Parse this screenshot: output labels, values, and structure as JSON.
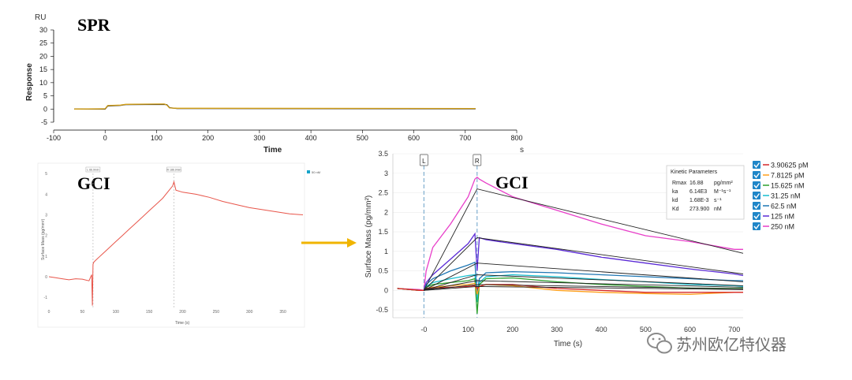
{
  "spr_chart": {
    "type": "line",
    "title": "SPR",
    "y_unit": "RU",
    "ylabel": "Response",
    "xlabel": "Time",
    "x_unit": "s",
    "xlim": [
      -100,
      800
    ],
    "ylim": [
      -5,
      30
    ],
    "xticks": [
      -100,
      0,
      100,
      200,
      300,
      400,
      500,
      600,
      700,
      800
    ],
    "yticks": [
      -5,
      0,
      5,
      10,
      15,
      20,
      25,
      30
    ],
    "series": [
      {
        "color": "#000000",
        "x": [
          -60,
          0,
          5,
          30,
          40,
          115,
          120,
          125,
          140,
          720
        ],
        "y": [
          0,
          0,
          1.2,
          1.4,
          1.7,
          1.8,
          1.6,
          0.5,
          0.2,
          0.1
        ]
      },
      {
        "color": "#d4a017",
        "x": [
          -60,
          0,
          5,
          30,
          40,
          115,
          120,
          125,
          140,
          720
        ],
        "y": [
          0,
          0.1,
          1.3,
          1.5,
          1.8,
          1.9,
          1.5,
          0.4,
          0.3,
          0.2
        ]
      }
    ]
  },
  "gci_left": {
    "type": "line",
    "title": "GCI",
    "ylabel": "Surface Mass (pg/mm²)",
    "xlabel": "Time (s)",
    "legend": "50 nM",
    "marker_labels": [
      "L 66.9min",
      "R 186.9min"
    ],
    "xlim": [
      0,
      380
    ],
    "ylim": [
      -1.3,
      5.2
    ],
    "xticks": [
      0,
      50,
      100,
      150,
      200,
      250,
      300,
      350
    ],
    "yticks": [
      -1,
      0,
      1,
      2,
      3,
      4,
      5
    ],
    "markers_x": [
      66,
      187
    ],
    "series": [
      {
        "color": "#e8554a",
        "x": [
          0,
          10,
          20,
          30,
          40,
          50,
          60,
          64,
          65,
          66,
          67,
          70,
          80,
          90,
          100,
          110,
          120,
          130,
          140,
          150,
          160,
          170,
          180,
          185,
          187,
          190,
          200,
          220,
          240,
          260,
          280,
          300,
          320,
          340,
          360,
          380
        ],
        "y": [
          0.0,
          -0.05,
          -0.1,
          -0.15,
          -0.1,
          -0.12,
          -0.2,
          0.1,
          -1.4,
          0.6,
          0.7,
          0.8,
          1.1,
          1.4,
          1.7,
          2.0,
          2.3,
          2.6,
          2.9,
          3.2,
          3.5,
          3.8,
          4.2,
          4.4,
          4.6,
          4.2,
          4.1,
          4.0,
          3.85,
          3.65,
          3.5,
          3.35,
          3.25,
          3.15,
          3.05,
          3.0
        ]
      }
    ]
  },
  "gci_right": {
    "type": "line",
    "title": "GCI",
    "ylabel": "Surface Mass (pg/mm²)",
    "xlabel": "Time (s)",
    "xlim": [
      -70,
      720
    ],
    "ylim": [
      -0.7,
      3.5
    ],
    "xticks": [
      0,
      100,
      200,
      300,
      400,
      500,
      600,
      700
    ],
    "xticklabels": [
      "-0",
      "100",
      "200",
      "300",
      "400",
      "500",
      "600",
      "700"
    ],
    "yticks": [
      -0.5,
      0,
      0.5,
      1,
      1.5,
      2,
      2.5,
      3,
      3.5
    ],
    "markers": [
      {
        "label": "L",
        "x": 0
      },
      {
        "label": "R",
        "x": 120
      }
    ],
    "kinetic_parameters": {
      "title": "Kinetic Parameters",
      "rows": [
        {
          "name": "Rmax",
          "value": "16.88",
          "unit": "pg/mm²"
        },
        {
          "name": "ka",
          "value": "6.14E3",
          "unit": "M⁻¹s⁻¹"
        },
        {
          "name": "kd",
          "value": "1.68E-3",
          "unit": "s⁻¹"
        },
        {
          "name": "Kd",
          "value": "273.900",
          "unit": "nM"
        }
      ]
    },
    "legend": [
      {
        "name": "3.90625 pM",
        "color": "#d62728"
      },
      {
        "name": "7.8125 pM",
        "color": "#ff9f1a"
      },
      {
        "name": "15.625 nM",
        "color": "#2ca02c"
      },
      {
        "name": "31.25 nM",
        "color": "#17becf"
      },
      {
        "name": "62.5 nM",
        "color": "#1f77b4"
      },
      {
        "name": "125 nM",
        "color": "#5b2bd6"
      },
      {
        "name": "250 nM",
        "color": "#e83ec9"
      }
    ],
    "series": [
      {
        "name": "250 nM",
        "color": "#e83ec9",
        "x": [
          -60,
          -10,
          0,
          5,
          20,
          60,
          100,
          115,
          120,
          125,
          140,
          200,
          300,
          400,
          500,
          600,
          700,
          720
        ],
        "y": [
          0.05,
          0.02,
          0.0,
          0.5,
          1.1,
          1.7,
          2.4,
          2.85,
          2.9,
          2.85,
          2.75,
          2.4,
          2.05,
          1.7,
          1.4,
          1.25,
          1.05,
          1.05
        ]
      },
      {
        "name": "125 nM",
        "color": "#5b2bd6",
        "x": [
          -60,
          -10,
          0,
          5,
          20,
          60,
          100,
          115,
          120,
          125,
          140,
          200,
          300,
          400,
          500,
          600,
          700,
          720
        ],
        "y": [
          0.05,
          0.0,
          0.0,
          0.2,
          0.4,
          0.8,
          1.2,
          1.45,
          0.5,
          1.35,
          1.3,
          1.2,
          1.05,
          0.85,
          0.7,
          0.55,
          0.42,
          0.38
        ]
      },
      {
        "name": "62.5 nM",
        "color": "#1f77b4",
        "x": [
          -60,
          -10,
          0,
          5,
          20,
          60,
          100,
          115,
          120,
          125,
          140,
          200,
          300,
          400,
          500,
          600,
          700,
          720
        ],
        "y": [
          0.05,
          0.0,
          0.0,
          0.15,
          0.3,
          0.5,
          0.65,
          0.72,
          -0.1,
          0.3,
          0.45,
          0.48,
          0.45,
          0.4,
          0.35,
          0.3,
          0.25,
          0.25
        ]
      },
      {
        "name": "31.25 nM",
        "color": "#17becf",
        "x": [
          -60,
          -10,
          0,
          5,
          20,
          60,
          100,
          115,
          120,
          125,
          140,
          200,
          300,
          400,
          500,
          600,
          700,
          720
        ],
        "y": [
          0.05,
          0.0,
          0.0,
          0.1,
          0.2,
          0.3,
          0.38,
          0.4,
          -0.3,
          0.2,
          0.35,
          0.4,
          0.35,
          0.28,
          0.22,
          0.15,
          0.12,
          0.1
        ]
      },
      {
        "name": "15.625 nM",
        "color": "#2ca02c",
        "x": [
          -60,
          -10,
          0,
          5,
          20,
          60,
          100,
          115,
          120,
          125,
          140,
          200,
          300,
          400,
          500,
          600,
          700,
          720
        ],
        "y": [
          0.05,
          0.0,
          0.0,
          0.08,
          0.15,
          0.2,
          0.25,
          0.3,
          -0.6,
          0.15,
          0.3,
          0.32,
          0.22,
          0.15,
          0.1,
          0.06,
          0.05,
          0.05
        ]
      },
      {
        "name": "7.8125 pM",
        "color": "#ff9f1a",
        "x": [
          -60,
          -10,
          0,
          5,
          20,
          60,
          100,
          115,
          120,
          125,
          140,
          200,
          300,
          400,
          500,
          600,
          700,
          720
        ],
        "y": [
          0.05,
          0.0,
          0.0,
          0.05,
          0.08,
          0.12,
          0.15,
          0.18,
          -0.1,
          0.1,
          0.15,
          0.12,
          0.0,
          -0.05,
          -0.08,
          -0.1,
          -0.05,
          -0.05
        ]
      },
      {
        "name": "3.90625 pM",
        "color": "#d62728",
        "x": [
          -60,
          -10,
          0,
          5,
          20,
          60,
          100,
          115,
          120,
          125,
          140,
          200,
          300,
          400,
          500,
          600,
          700,
          720
        ],
        "y": [
          0.05,
          0.0,
          0.0,
          0.05,
          0.06,
          0.08,
          0.1,
          0.12,
          0.05,
          0.1,
          0.15,
          0.15,
          0.05,
          0.0,
          -0.05,
          -0.05,
          -0.05,
          -0.05
        ]
      }
    ],
    "fit_lines": [
      {
        "x": [
          0,
          120,
          720
        ],
        "y": [
          0.0,
          2.6,
          0.95
        ]
      },
      {
        "x": [
          0,
          120,
          720
        ],
        "y": [
          0.0,
          1.35,
          0.42
        ]
      },
      {
        "x": [
          0,
          120,
          720
        ],
        "y": [
          0.0,
          0.7,
          0.22
        ]
      },
      {
        "x": [
          0,
          120,
          720
        ],
        "y": [
          0.0,
          0.4,
          0.12
        ]
      },
      {
        "x": [
          0,
          120,
          720
        ],
        "y": [
          0.0,
          0.25,
          0.08
        ]
      },
      {
        "x": [
          0,
          120,
          720
        ],
        "y": [
          0.0,
          0.15,
          0.04
        ]
      },
      {
        "x": [
          0,
          120,
          720
        ],
        "y": [
          0.0,
          0.1,
          0.02
        ]
      }
    ]
  },
  "watermark": {
    "text": "苏州欧亿特仪器",
    "icon": "wechat-icon"
  },
  "arrow": {
    "color": "#f0b400",
    "icon": "arrow-right-icon"
  }
}
